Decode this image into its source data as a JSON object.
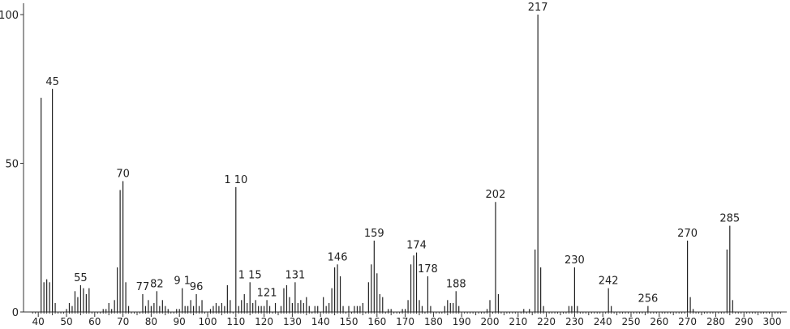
{
  "chart_data": {
    "type": "bar",
    "title": "",
    "xlabel": "",
    "ylabel": "",
    "xlim": [
      38,
      303
    ],
    "ylim": [
      0,
      100
    ],
    "x_ticks": [
      40,
      50,
      60,
      70,
      80,
      90,
      100,
      110,
      120,
      130,
      140,
      150,
      160,
      170,
      180,
      190,
      200,
      210,
      220,
      230,
      240,
      250,
      260,
      270,
      280,
      290,
      300
    ],
    "y_ticks": [
      0,
      50,
      100
    ],
    "peaks": [
      {
        "x": 41,
        "y": 72
      },
      {
        "x": 42,
        "y": 10
      },
      {
        "x": 43,
        "y": 11
      },
      {
        "x": 44,
        "y": 10
      },
      {
        "x": 45,
        "y": 75
      },
      {
        "x": 46,
        "y": 3
      },
      {
        "x": 50,
        "y": 1
      },
      {
        "x": 51,
        "y": 3
      },
      {
        "x": 52,
        "y": 2
      },
      {
        "x": 53,
        "y": 7
      },
      {
        "x": 54,
        "y": 5
      },
      {
        "x": 55,
        "y": 9
      },
      {
        "x": 56,
        "y": 8
      },
      {
        "x": 57,
        "y": 6
      },
      {
        "x": 58,
        "y": 8
      },
      {
        "x": 63,
        "y": 1
      },
      {
        "x": 64,
        "y": 1
      },
      {
        "x": 65,
        "y": 3
      },
      {
        "x": 66,
        "y": 1
      },
      {
        "x": 67,
        "y": 4
      },
      {
        "x": 68,
        "y": 15
      },
      {
        "x": 69,
        "y": 41
      },
      {
        "x": 70,
        "y": 44
      },
      {
        "x": 71,
        "y": 10
      },
      {
        "x": 72,
        "y": 2
      },
      {
        "x": 77,
        "y": 6
      },
      {
        "x": 78,
        "y": 2
      },
      {
        "x": 79,
        "y": 4
      },
      {
        "x": 80,
        "y": 2
      },
      {
        "x": 81,
        "y": 3
      },
      {
        "x": 82,
        "y": 7
      },
      {
        "x": 83,
        "y": 2
      },
      {
        "x": 84,
        "y": 4
      },
      {
        "x": 85,
        "y": 2
      },
      {
        "x": 86,
        "y": 1
      },
      {
        "x": 89,
        "y": 1
      },
      {
        "x": 90,
        "y": 1
      },
      {
        "x": 91,
        "y": 8
      },
      {
        "x": 92,
        "y": 2
      },
      {
        "x": 93,
        "y": 2
      },
      {
        "x": 94,
        "y": 4
      },
      {
        "x": 95,
        "y": 2
      },
      {
        "x": 96,
        "y": 6
      },
      {
        "x": 97,
        "y": 2
      },
      {
        "x": 98,
        "y": 4
      },
      {
        "x": 101,
        "y": 1
      },
      {
        "x": 102,
        "y": 2
      },
      {
        "x": 103,
        "y": 3
      },
      {
        "x": 104,
        "y": 2
      },
      {
        "x": 105,
        "y": 3
      },
      {
        "x": 106,
        "y": 2
      },
      {
        "x": 107,
        "y": 9
      },
      {
        "x": 108,
        "y": 4
      },
      {
        "x": 110,
        "y": 42
      },
      {
        "x": 111,
        "y": 2
      },
      {
        "x": 112,
        "y": 4
      },
      {
        "x": 113,
        "y": 6
      },
      {
        "x": 114,
        "y": 3
      },
      {
        "x": 115,
        "y": 10
      },
      {
        "x": 116,
        "y": 3
      },
      {
        "x": 117,
        "y": 4
      },
      {
        "x": 118,
        "y": 2
      },
      {
        "x": 119,
        "y": 2
      },
      {
        "x": 120,
        "y": 2
      },
      {
        "x": 121,
        "y": 4
      },
      {
        "x": 122,
        "y": 2
      },
      {
        "x": 124,
        "y": 3
      },
      {
        "x": 126,
        "y": 2
      },
      {
        "x": 127,
        "y": 8
      },
      {
        "x": 128,
        "y": 9
      },
      {
        "x": 129,
        "y": 5
      },
      {
        "x": 130,
        "y": 3
      },
      {
        "x": 131,
        "y": 10
      },
      {
        "x": 132,
        "y": 3
      },
      {
        "x": 133,
        "y": 4
      },
      {
        "x": 134,
        "y": 3
      },
      {
        "x": 135,
        "y": 5
      },
      {
        "x": 136,
        "y": 2
      },
      {
        "x": 138,
        "y": 2
      },
      {
        "x": 139,
        "y": 2
      },
      {
        "x": 141,
        "y": 5
      },
      {
        "x": 142,
        "y": 2
      },
      {
        "x": 143,
        "y": 3
      },
      {
        "x": 144,
        "y": 8
      },
      {
        "x": 145,
        "y": 15
      },
      {
        "x": 146,
        "y": 16
      },
      {
        "x": 147,
        "y": 12
      },
      {
        "x": 148,
        "y": 2
      },
      {
        "x": 150,
        "y": 2
      },
      {
        "x": 152,
        "y": 2
      },
      {
        "x": 153,
        "y": 2
      },
      {
        "x": 154,
        "y": 2
      },
      {
        "x": 155,
        "y": 3
      },
      {
        "x": 157,
        "y": 10
      },
      {
        "x": 158,
        "y": 16
      },
      {
        "x": 159,
        "y": 24
      },
      {
        "x": 160,
        "y": 13
      },
      {
        "x": 161,
        "y": 6
      },
      {
        "x": 162,
        "y": 5
      },
      {
        "x": 164,
        "y": 1
      },
      {
        "x": 165,
        "y": 1
      },
      {
        "x": 169,
        "y": 1
      },
      {
        "x": 170,
        "y": 1
      },
      {
        "x": 171,
        "y": 4
      },
      {
        "x": 172,
        "y": 16
      },
      {
        "x": 173,
        "y": 19
      },
      {
        "x": 174,
        "y": 20
      },
      {
        "x": 175,
        "y": 4
      },
      {
        "x": 176,
        "y": 2
      },
      {
        "x": 178,
        "y": 12
      },
      {
        "x": 179,
        "y": 2
      },
      {
        "x": 184,
        "y": 2
      },
      {
        "x": 185,
        "y": 4
      },
      {
        "x": 186,
        "y": 3
      },
      {
        "x": 187,
        "y": 3
      },
      {
        "x": 188,
        "y": 7
      },
      {
        "x": 189,
        "y": 2
      },
      {
        "x": 199,
        "y": 1
      },
      {
        "x": 200,
        "y": 4
      },
      {
        "x": 202,
        "y": 37
      },
      {
        "x": 203,
        "y": 6
      },
      {
        "x": 212,
        "y": 1
      },
      {
        "x": 214,
        "y": 1
      },
      {
        "x": 216,
        "y": 21
      },
      {
        "x": 217,
        "y": 100
      },
      {
        "x": 218,
        "y": 15
      },
      {
        "x": 219,
        "y": 2
      },
      {
        "x": 228,
        "y": 2
      },
      {
        "x": 229,
        "y": 2
      },
      {
        "x": 230,
        "y": 15
      },
      {
        "x": 231,
        "y": 2
      },
      {
        "x": 242,
        "y": 8
      },
      {
        "x": 243,
        "y": 2
      },
      {
        "x": 256,
        "y": 2
      },
      {
        "x": 270,
        "y": 24
      },
      {
        "x": 271,
        "y": 5
      },
      {
        "x": 272,
        "y": 1
      },
      {
        "x": 284,
        "y": 21
      },
      {
        "x": 285,
        "y": 29
      },
      {
        "x": 286,
        "y": 4
      }
    ],
    "peak_labels": [
      {
        "x": 45,
        "y": 75,
        "text": "45"
      },
      {
        "x": 55,
        "y": 9,
        "text": "55"
      },
      {
        "x": 70,
        "y": 44,
        "text": "70"
      },
      {
        "x": 77,
        "y": 6,
        "text": "77"
      },
      {
        "x": 82,
        "y": 7,
        "text": "82"
      },
      {
        "x": 91,
        "y": 8,
        "text": "9 1"
      },
      {
        "x": 96,
        "y": 6,
        "text": "96"
      },
      {
        "x": 110,
        "y": 42,
        "text": "1 10"
      },
      {
        "x": 115,
        "y": 10,
        "text": "1 15"
      },
      {
        "x": 121,
        "y": 4,
        "text": "121"
      },
      {
        "x": 131,
        "y": 10,
        "text": "131"
      },
      {
        "x": 146,
        "y": 16,
        "text": "146"
      },
      {
        "x": 159,
        "y": 24,
        "text": "159"
      },
      {
        "x": 174,
        "y": 20,
        "text": "174"
      },
      {
        "x": 178,
        "y": 12,
        "text": "178"
      },
      {
        "x": 188,
        "y": 7,
        "text": "188"
      },
      {
        "x": 202,
        "y": 37,
        "text": "202"
      },
      {
        "x": 217,
        "y": 100,
        "text": "217"
      },
      {
        "x": 230,
        "y": 15,
        "text": "230"
      },
      {
        "x": 242,
        "y": 8,
        "text": "242"
      },
      {
        "x": 256,
        "y": 2,
        "text": "256"
      },
      {
        "x": 270,
        "y": 24,
        "text": "270"
      },
      {
        "x": 285,
        "y": 29,
        "text": "285"
      }
    ]
  }
}
